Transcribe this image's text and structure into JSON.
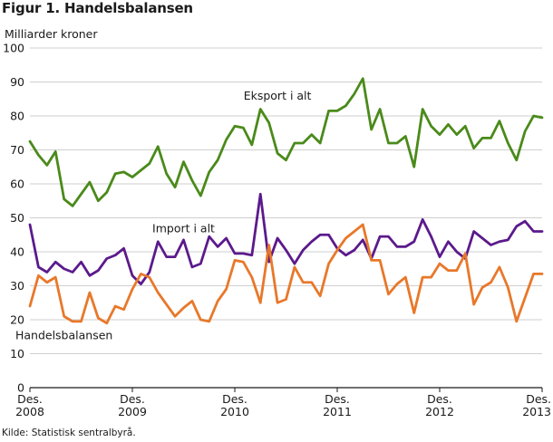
{
  "figure_title": "Figur 1. Handelsbalansen",
  "source": "Kilde: Statistisk sentralbyrå.",
  "chart_data": {
    "type": "line",
    "title": "Figur 1. Handelsbalansen",
    "ylabel": "Milliarder kroner",
    "xlabel": "",
    "ylim": [
      0,
      100
    ],
    "yticks": [
      0,
      10,
      20,
      30,
      40,
      50,
      60,
      70,
      80,
      90,
      100
    ],
    "x_start": "2008-12",
    "x_end": "2013-12",
    "xticks": [
      {
        "x": "2008-12",
        "line1": "Des.",
        "line2": "2008"
      },
      {
        "x": "2009-12",
        "line1": "Des.",
        "line2": "2009"
      },
      {
        "x": "2010-12",
        "line1": "Des.",
        "line2": "2010"
      },
      {
        "x": "2011-12",
        "line1": "Des.",
        "line2": "2011"
      },
      {
        "x": "2012-12",
        "line1": "Des.",
        "line2": "2012"
      },
      {
        "x": "2013-12",
        "line1": "Des.",
        "line2": "2013"
      }
    ],
    "grid": true,
    "series": [
      {
        "name": "Eksport i alt",
        "color": "#4a8a1a",
        "label_at": "2011-05",
        "label_value": 86,
        "values": [
          72.5,
          68.5,
          65.5,
          69.5,
          55.5,
          53.5,
          57,
          60.5,
          55,
          57.5,
          63,
          63.5,
          62,
          64,
          66,
          71,
          63,
          59,
          66.5,
          61,
          56.5,
          63.5,
          67,
          73,
          77,
          76.5,
          71.5,
          82,
          78,
          69,
          67,
          72,
          72,
          74.5,
          72,
          81.5,
          81.5,
          83,
          86.5,
          91,
          76,
          82,
          72,
          72,
          74,
          65,
          82,
          77,
          74.5,
          77.5,
          74.5,
          77,
          70.5,
          73.5,
          73.5,
          78.5,
          72,
          67,
          75.5,
          80,
          79.5
        ]
      },
      {
        "name": "Import i alt",
        "color": "#5b1a8c",
        "label_at": "2010-06",
        "label_value": 47,
        "values": [
          48,
          35.5,
          34,
          37,
          35,
          34,
          37,
          33,
          34.5,
          38,
          39,
          41,
          33,
          30.5,
          34,
          43,
          38.5,
          38.5,
          43.5,
          35.5,
          36.5,
          44.5,
          41.5,
          44,
          39.5,
          39.5,
          39,
          57,
          37,
          44,
          40.5,
          36.5,
          40.5,
          43,
          45,
          45,
          41,
          39,
          40.5,
          43.5,
          38,
          44.5,
          44.5,
          41.5,
          41.5,
          43,
          49.5,
          44.5,
          38.5,
          43,
          40,
          38,
          46,
          44,
          42,
          43,
          43.5,
          47.5,
          49,
          46,
          46
        ]
      },
      {
        "name": "Handelsbalansen",
        "color": "#e8782a",
        "label_at": "2009-04",
        "label_value": 15.5,
        "values": [
          24,
          33,
          31,
          32.5,
          21,
          19.5,
          19.5,
          28,
          20.5,
          19,
          24,
          23,
          29,
          33.5,
          32.5,
          28,
          24.5,
          21,
          23.5,
          25.5,
          20,
          19.5,
          25.5,
          29,
          37.5,
          37,
          32.5,
          25,
          42,
          25,
          26,
          35.5,
          31,
          31,
          27,
          36.5,
          40.5,
          44,
          46,
          48,
          37.5,
          37.5,
          27.5,
          30.5,
          32.5,
          22,
          32.5,
          32.5,
          36.5,
          34.5,
          34.5,
          39.5,
          24.5,
          29.5,
          31,
          35.5,
          29.5,
          19.5,
          26.5,
          33.5,
          33.5
        ]
      }
    ]
  }
}
